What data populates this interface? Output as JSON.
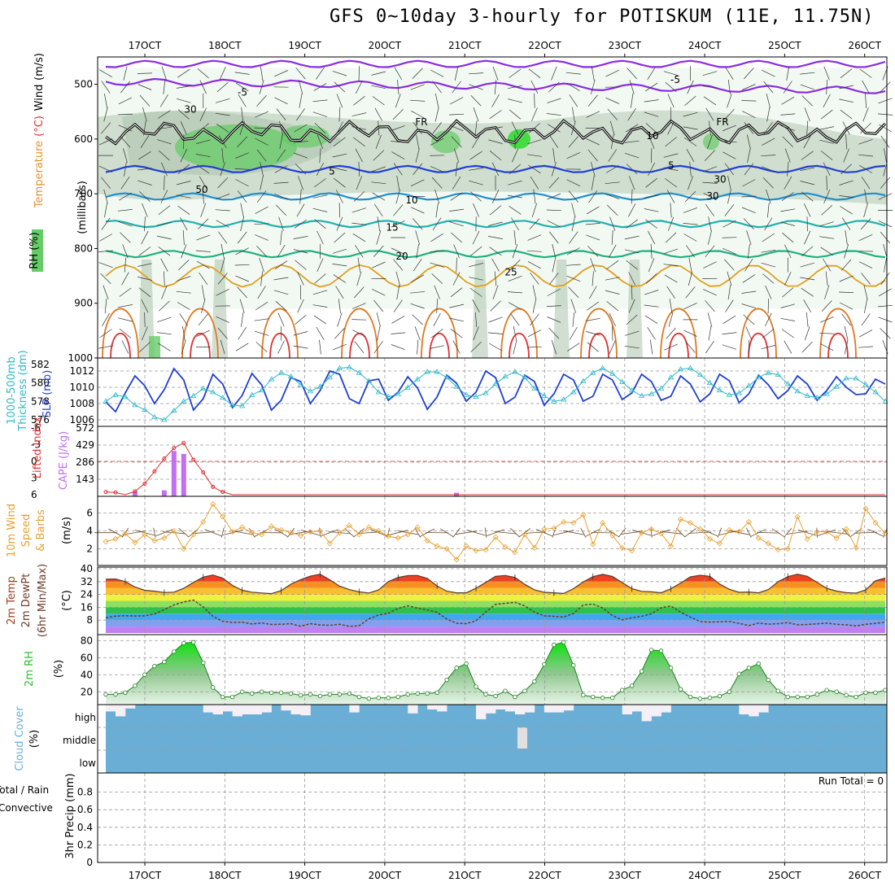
{
  "title": "GFS 0~10day 3-hourly for POTISKUM (11E, 11.75N)",
  "colors": {
    "rh_light": "#e6f3e6",
    "rh_mid": "#b3c8b3",
    "rh_dark": "#66cc66",
    "slp": "#2040d0",
    "thickness": "#30b8c8",
    "cape": "#c070f0",
    "li": "#e03030",
    "wind10": "#e8a030",
    "rh2m": "#30c030",
    "cloud": "#6aaed6",
    "cloud_clear": "#f4f0f6"
  },
  "chart_data": [
    {
      "id": "upper_air",
      "type": "heatmap",
      "ylabel_parts": [
        "RH (%)",
        "Temperature",
        "(°C)",
        "Wind",
        "(m/s)",
        "(millibars)"
      ],
      "ylim": [
        1000,
        450
      ],
      "yticks": [
        "500",
        "600",
        "700",
        "800",
        "900",
        "1000"
      ],
      "xticks": [
        "17OCT",
        "18OCT",
        "19OCT",
        "20OCT",
        "21OCT",
        "22OCT",
        "23OCT",
        "24OCT",
        "25OCT",
        "26OCT"
      ],
      "isotherm_labels": [
        {
          "label": "-5",
          "p": 513
        },
        {
          "label": "-5",
          "p": 490
        },
        {
          "label": "5",
          "p": 657
        },
        {
          "label": "5",
          "p": 647
        },
        {
          "label": "10",
          "p": 710
        },
        {
          "label": "15",
          "p": 760
        },
        {
          "label": "20",
          "p": 813
        },
        {
          "label": "25",
          "p": 842
        }
      ],
      "freezing_labels": [
        "FR",
        "FR"
      ],
      "rh_labels": [
        "30",
        "50",
        "10",
        "30",
        "30"
      ]
    },
    {
      "id": "slp_thickness",
      "type": "line",
      "ylabel_left": "1000-500mb Thickness (dm)",
      "ylabel_right": "SLP (mb)",
      "yticks_left": [
        "576",
        "578",
        "580",
        "582"
      ],
      "yticks_right": [
        "1006",
        "1008",
        "1010",
        "1012"
      ],
      "series": [
        {
          "name": "SLP",
          "values": [
            1008.2,
            1007.0,
            1009.3,
            1011.4,
            1010.2,
            1008.0,
            1009.7,
            1012.3,
            1010.9,
            1007.2,
            1008.6,
            1011.6,
            1010.4,
            1007.5,
            1009.0,
            1011.7,
            1010.3,
            1007.2,
            1008.4,
            1011.2,
            1010.7,
            1008.0,
            1009.6,
            1012.0,
            1011.6,
            1008.6,
            1008.0,
            1010.8,
            1011.0,
            1008.4,
            1009.4,
            1011.3,
            1009.9,
            1007.3,
            1008.8,
            1011.5,
            1010.5,
            1008.3,
            1009.4,
            1012.0,
            1011.2,
            1008.0,
            1008.8,
            1011.5,
            1010.7,
            1007.8,
            1009.2,
            1011.6,
            1010.9,
            1008.3,
            1008.9,
            1011.6,
            1010.9,
            1008.5,
            1009.3,
            1011.6,
            1010.7,
            1008.4,
            1008.9,
            1011.4,
            1010.4,
            1008.2,
            1009.2,
            1011.6,
            1010.8,
            1008.1,
            1009.2,
            1011.5,
            1010.3,
            1008.6,
            1009.6,
            1011.4,
            1010.4,
            1008.4,
            1009.6,
            1011.3,
            1010.0,
            1009.1,
            1009.2,
            1011.0,
            1010.4
          ]
        },
        {
          "name": "Thickness",
          "values": [
            578.0,
            578.7,
            578.5,
            577.6,
            577.1,
            576.3,
            576.0,
            577.0,
            578.0,
            578.6,
            579.4,
            579.0,
            578.4,
            577.6,
            577.5,
            578.7,
            579.2,
            580.4,
            581.1,
            580.7,
            579.8,
            579.1,
            579.6,
            580.6,
            581.6,
            581.7,
            581.1,
            580.2,
            579.0,
            578.5,
            578.8,
            579.5,
            580.4,
            581.2,
            581.2,
            580.6,
            579.6,
            578.7,
            578.5,
            578.9,
            579.9,
            580.7,
            581.2,
            580.6,
            579.4,
            578.6,
            578.0,
            578.2,
            579.0,
            580.2,
            581.1,
            581.6,
            581.0,
            580.1,
            579.2,
            578.6,
            578.8,
            579.4,
            580.6,
            581.5,
            581.6,
            580.9,
            580.0,
            579.2,
            578.7,
            578.9,
            579.7,
            580.6,
            581.1,
            580.9,
            579.9,
            579.1,
            578.6,
            578.4,
            578.8,
            579.6,
            580.5,
            580.5,
            579.8,
            579.0,
            578.0
          ]
        }
      ]
    },
    {
      "id": "cape_li",
      "type": "bar",
      "ylabel_left": "Lifted Index",
      "ylabel_right": "CAPE (J/kg)",
      "yticks_left": [
        "-6",
        "-3",
        "0",
        "3",
        "6"
      ],
      "yticks_right": [
        "143",
        "286",
        "429",
        "572"
      ],
      "series": [
        {
          "name": "CAPE",
          "values": [
            0,
            0,
            0,
            40,
            0,
            0,
            50,
            380,
            355,
            0,
            0,
            0,
            0,
            0,
            0,
            0,
            0,
            0,
            0,
            0,
            0,
            0,
            0,
            0,
            0,
            0,
            0,
            0,
            0,
            0,
            0,
            0,
            0,
            0,
            0,
            0,
            30,
            0,
            0,
            0,
            0,
            0,
            0,
            0,
            0,
            0,
            0,
            0,
            0,
            0,
            0,
            0,
            0,
            0,
            0,
            0,
            0,
            0,
            0,
            0,
            0,
            0,
            0,
            0,
            0,
            0,
            0,
            0,
            0,
            0,
            0,
            0,
            0,
            0,
            0,
            0,
            0,
            0,
            0,
            0,
            0
          ]
        },
        {
          "name": "LI",
          "values": [
            5.5,
            5.6,
            6,
            5.4,
            4,
            1.8,
            -0.5,
            -2.4,
            -3.3,
            -0.3,
            2,
            4.6,
            5.5,
            6,
            6,
            6,
            6,
            6,
            6,
            6,
            6,
            6,
            6,
            6,
            6,
            6,
            6,
            6,
            6,
            6,
            6,
            6,
            6,
            6,
            6,
            6,
            6,
            6,
            6,
            6,
            6,
            6,
            6,
            6,
            6,
            6,
            6,
            6,
            6,
            6,
            6,
            6,
            6,
            6,
            6,
            6,
            6,
            6,
            6,
            6,
            6,
            6,
            6,
            6,
            6,
            6,
            6,
            6,
            6,
            6,
            6,
            6,
            6,
            6,
            6,
            6,
            6,
            6,
            6,
            6,
            6
          ]
        }
      ]
    },
    {
      "id": "wind10m",
      "type": "line",
      "ylabel": "10m Wind Speed & Barbs (m/s)",
      "yticks": [
        "2",
        "4",
        "6"
      ],
      "series": [
        {
          "name": "Speed",
          "values": [
            2.8,
            3.1,
            3.7,
            2.7,
            3.6,
            2.9,
            3.2,
            4.0,
            2.0,
            3.6,
            5.0,
            7.0,
            5.6,
            3.9,
            4.4,
            3.8,
            3.6,
            4.5,
            4.1,
            3.8,
            3.5,
            3.9,
            4.0,
            2.6,
            3.8,
            4.6,
            3.6,
            4.4,
            4.0,
            3.4,
            3.2,
            3.6,
            4.4,
            2.9,
            2.3,
            2.0,
            0.8,
            2.3,
            1.8,
            1.9,
            3.3,
            2.2,
            1.6,
            3.6,
            2.1,
            4.2,
            4.3,
            5.0,
            4.9,
            5.8,
            2.5,
            4.9,
            3.5,
            2.1,
            1.8,
            3.8,
            4.2,
            3.7,
            2.3,
            5.3,
            4.9,
            4.2,
            3.1,
            2.6,
            4.1,
            3.9,
            5.0,
            3.2,
            2.6,
            1.9,
            2.0,
            5.6,
            3.1,
            3.9,
            3.9,
            3.2,
            4.2,
            2.1,
            6.5,
            4.9,
            3.7
          ]
        }
      ]
    },
    {
      "id": "temp2m",
      "type": "area",
      "ylabel": "2m Temp 2m DewPt (6hr Min/Max) (°C)",
      "yticks": [
        "8",
        "16",
        "24",
        "32",
        "40"
      ],
      "series": [
        {
          "name": "Temp",
          "values": [
            33.5,
            33.6,
            32.0,
            28.6,
            26.6,
            26.0,
            25.2,
            25.4,
            27.8,
            31.5,
            34.8,
            36.1,
            34.2,
            29.6,
            26.6,
            25.4,
            24.9,
            24.5,
            26.4,
            30.4,
            33.2,
            35.4,
            36.6,
            33.1,
            29.1,
            27.0,
            25.6,
            24.9,
            26.8,
            32.0,
            34.6,
            35.7,
            35.8,
            34.0,
            29.3,
            26.0,
            25.0,
            25.0,
            27.8,
            31.5,
            35.3,
            35.8,
            34.6,
            30.3,
            26.9,
            25.3,
            25.0,
            24.6,
            27.6,
            31.8,
            35.1,
            36.5,
            35.2,
            31.4,
            27.6,
            25.9,
            25.6,
            25.0,
            27.5,
            31.1,
            35.0,
            35.9,
            35.3,
            30.5,
            27.2,
            25.3,
            25.5,
            25.0,
            27.0,
            31.9,
            35.1,
            36.6,
            35.3,
            31.5,
            27.8,
            26.1,
            25.1,
            24.8,
            26.8,
            32.5,
            34.2
          ]
        },
        {
          "name": "DewPt",
          "values": [
            9.5,
            10.5,
            10.8,
            10.6,
            10.7,
            11.9,
            14.5,
            17.5,
            19.3,
            20.5,
            16.2,
            10.4,
            7.3,
            6.6,
            6.8,
            5.6,
            6.3,
            5.3,
            5.4,
            5.8,
            4.2,
            5.8,
            5.0,
            4.8,
            5.4,
            4.1,
            4.5,
            8.8,
            11.2,
            12.3,
            15.3,
            16.9,
            15.5,
            14.3,
            12.9,
            8.7,
            6.1,
            5.8,
            7.6,
            13.1,
            17.8,
            18.5,
            19.1,
            16.9,
            12.9,
            10.7,
            10.4,
            9.9,
            12.2,
            17.4,
            18.0,
            15.6,
            10.8,
            8.2,
            9.5,
            10.4,
            12.0,
            15.7,
            16.8,
            13.0,
            9.9,
            7.1,
            6.8,
            7.0,
            7.2,
            6.0,
            4.6,
            6.2,
            5.5,
            5.8,
            6.5,
            5.1,
            5.3,
            5.7,
            6.2,
            5.4,
            5.1,
            4.4,
            5.4,
            6.0,
            6.7
          ]
        }
      ]
    },
    {
      "id": "rh2m",
      "type": "area",
      "ylabel": "2m RH (%)",
      "yticks": [
        "20",
        "40",
        "60",
        "80"
      ],
      "series": [
        {
          "name": "RH",
          "values": [
            17,
            17,
            19,
            27,
            40,
            50,
            55,
            67,
            77,
            78,
            54,
            25,
            14,
            14,
            20,
            18,
            20,
            19,
            19,
            18,
            16,
            17,
            15,
            17,
            17,
            18,
            14,
            12,
            13,
            13,
            14,
            17,
            18,
            18,
            19,
            34,
            48,
            53,
            26,
            17,
            15,
            21,
            14,
            21,
            32,
            52,
            75,
            78,
            51,
            16,
            14,
            13,
            13,
            22,
            27,
            44,
            69,
            68,
            48,
            23,
            14,
            12,
            13,
            15,
            20,
            41,
            48,
            53,
            34,
            21,
            14,
            14,
            14,
            17,
            22,
            20,
            16,
            14,
            19,
            19,
            22
          ]
        }
      ]
    },
    {
      "id": "cloud",
      "type": "bar",
      "ylabel": "Cloud Cover (%)",
      "yticks": [
        "high",
        "middle",
        "low"
      ],
      "series": [
        {
          "name": "High cloud clear fraction",
          "values": [
            0.35,
            0.6,
            0.2,
            0,
            0,
            0,
            0,
            0,
            0,
            0,
            0.4,
            0.5,
            0.35,
            0.6,
            0.5,
            0.5,
            0.4,
            0,
            0.3,
            0.5,
            0.55,
            0,
            0,
            0,
            0,
            0.4,
            0,
            0,
            0,
            0,
            0,
            0.45,
            0,
            0.25,
            0.35,
            0,
            0,
            0,
            0.75,
            0.45,
            0.25,
            0.35,
            0.5,
            0.4,
            0,
            0.4,
            0.4,
            0.3,
            0,
            0,
            0,
            0,
            0,
            0.5,
            0.35,
            0.85,
            0.6,
            0.4,
            0,
            0,
            0,
            0,
            0,
            0,
            0,
            0.5,
            0.6,
            0.4,
            0,
            0,
            0,
            0,
            0,
            0,
            0,
            0,
            0,
            0,
            0,
            0,
            0
          ]
        }
      ]
    },
    {
      "id": "precip",
      "type": "bar",
      "ylabel_parts": [
        "Total / Rain",
        "Convective",
        "3hr Precip (mm)"
      ],
      "yticks": [
        "0",
        "0.2",
        "0.4",
        "0.6",
        "0.8"
      ],
      "ylim": [
        0,
        1
      ],
      "run_total": "Run Total = 0",
      "series": [
        {
          "name": "Precip",
          "values": []
        }
      ]
    }
  ]
}
